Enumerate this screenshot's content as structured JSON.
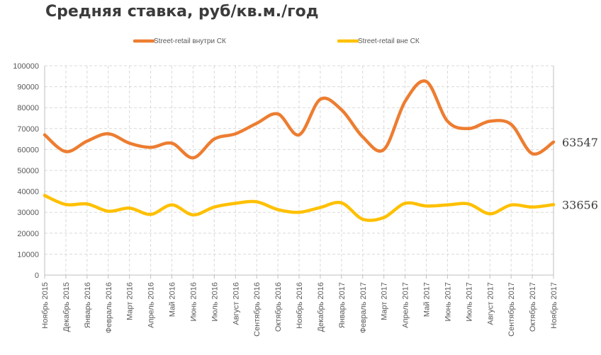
{
  "chart_data": {
    "type": "line",
    "title": "Средняя ставка, руб/кв.м./год",
    "xlabel": "",
    "ylabel": "",
    "ylim": [
      0,
      100000
    ],
    "y_ticks": [
      "0",
      "10000",
      "20000",
      "30000",
      "40000",
      "50000",
      "60000",
      "70000",
      "80000",
      "90000",
      "100000"
    ],
    "grid": true,
    "legend_position": "top",
    "categories": [
      "Ноябрь 2015",
      "Декабрь 2015",
      "Январь 2016",
      "Февраль 2016",
      "Март 2016",
      "Апрель 2016",
      "Май 2016",
      "Июнь 2016",
      "Июль 2016",
      "Август 2016",
      "Сентябрь 2016",
      "Октябрь 2016",
      "Ноябрь 2016",
      "Декабрь 2016",
      "Январь 2017",
      "Февраль 2017",
      "Март 2017",
      "Апрель 2017",
      "Май 2017",
      "Июнь 2017",
      "Июль 2017",
      "Август 2017",
      "Сентябрь 2017",
      "Октябрь 2017",
      "Ноябрь 2017"
    ],
    "series": [
      {
        "name": "Street-retail внутри СК",
        "color": "#ED7D31",
        "values": [
          67000,
          59000,
          64000,
          67500,
          63000,
          61000,
          63000,
          56000,
          65000,
          67500,
          72500,
          77000,
          67000,
          84000,
          79000,
          66000,
          60000,
          83000,
          92500,
          73500,
          70000,
          73500,
          72000,
          58000,
          63547
        ],
        "end_label": "63547"
      },
      {
        "name": "Street-retail вне СК",
        "color": "#FFC000",
        "values": [
          38000,
          33700,
          34000,
          30500,
          32000,
          29000,
          33500,
          28800,
          32500,
          34300,
          35000,
          31300,
          30000,
          32300,
          34500,
          26700,
          27500,
          34300,
          33000,
          33500,
          34000,
          29300,
          33500,
          32500,
          33656
        ],
        "end_label": "33656"
      }
    ]
  }
}
